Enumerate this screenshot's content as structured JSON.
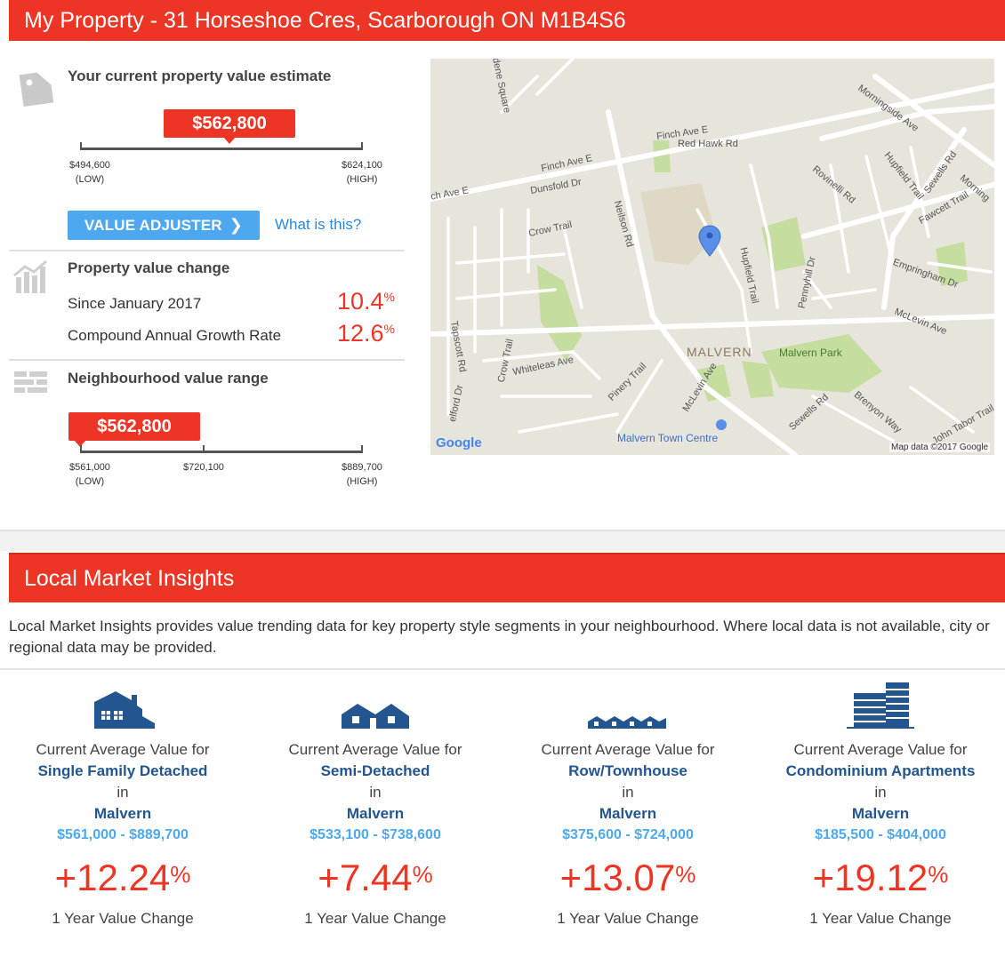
{
  "property": {
    "title": "My Property - 31 Horseshoe Cres, Scarborough ON M1B4S6",
    "estimate_heading": "Your current property value estimate",
    "estimate_value": "$562,800",
    "estimate_low": "$494,600",
    "estimate_high": "$624,100",
    "low_tag": "(LOW)",
    "high_tag": "(HIGH)",
    "adjuster_label": "VALUE ADJUSTER",
    "what_is_this": "What is this?",
    "change_heading": "Property value change",
    "since_label": "Since January 2017",
    "since_value": "10.4",
    "cagr_label": "Compound Annual Growth Rate",
    "cagr_value": "12.6",
    "percent": "%",
    "neighbourhood_heading": "Neighbourhood value range",
    "neighbourhood_value": "$562,800",
    "neighbourhood_low": "$561,000",
    "neighbourhood_mid": "$720,100",
    "neighbourhood_high": "$889,700"
  },
  "map": {
    "labels": {
      "finch_ave_e_1": "Finch Ave E",
      "finch_ave_e_2": "Finch Ave E",
      "finch_ave_e_3": "ch Ave E",
      "red_hawk": "Red Hawk Rd",
      "dunsfold": "Dunsfold Dr",
      "crow_trail": "Crow Trail",
      "neilson": "Neilson Rd",
      "hupfield": "Hupfield Trail",
      "hupfield2": "Hupfield Trail",
      "rovinelli": "Rovinelli Rd",
      "pennyhill": "Pennyhill Dr",
      "morningside": "Morningside Ave",
      "sewells1": "Sewells Rd",
      "fawcett": "Fawcett Trail",
      "empringham": "Empringham Dr",
      "mclevin1": "McLevin Ave",
      "mclevin2": "McLevin Ave",
      "malvern": "MALVERN",
      "malvern_park": "Malvern Park",
      "tapscott": "Tapscott Rd",
      "crow_trail2": "Crow Trail",
      "whiteleas": "Whiteleas Ave",
      "pinery": "Pinery Trail",
      "malvern_tc": "Malvern Town Centre",
      "sewells2": "Sewells Rd",
      "brenyon": "Brenyon Way",
      "john_tabor": "John Tabor Trail",
      "dene": "dene Square",
      "morning2": "Morning",
      "elford": "elford Dr",
      "google": "Google",
      "credit": "Map data ©2017 Google"
    }
  },
  "lmi": {
    "title": "Local Market Insights",
    "intro": "Local Market Insights provides value trending data for key property style segments in your neighbourhood. Where local data is not available, city or regional data may be provided.",
    "current_label": "Current Average Value for",
    "in_label": "in",
    "change_label": "1 Year Value Change",
    "percent": "%",
    "segments": [
      {
        "type": "Single Family Detached",
        "area": "Malvern",
        "range": "$561,000 - $889,700",
        "change": "+12.24",
        "icon": "detached-house-icon"
      },
      {
        "type": "Semi-Detached",
        "area": "Malvern",
        "range": "$533,100 - $738,600",
        "change": "+7.44",
        "icon": "semi-detached-house-icon"
      },
      {
        "type": "Row/Townhouse",
        "area": "Malvern",
        "range": "$375,600 - $724,000",
        "change": "+13.07",
        "icon": "townhouse-icon"
      },
      {
        "type": "Condominium Apartments",
        "area": "Malvern",
        "range": "$185,500 - $404,000",
        "change": "+19.12",
        "icon": "condo-building-icon"
      }
    ]
  },
  "colors": {
    "brand_red": "#ec3524",
    "link_blue": "#2a8ae0",
    "button_blue": "#4da8f0",
    "navy": "#23558e"
  }
}
